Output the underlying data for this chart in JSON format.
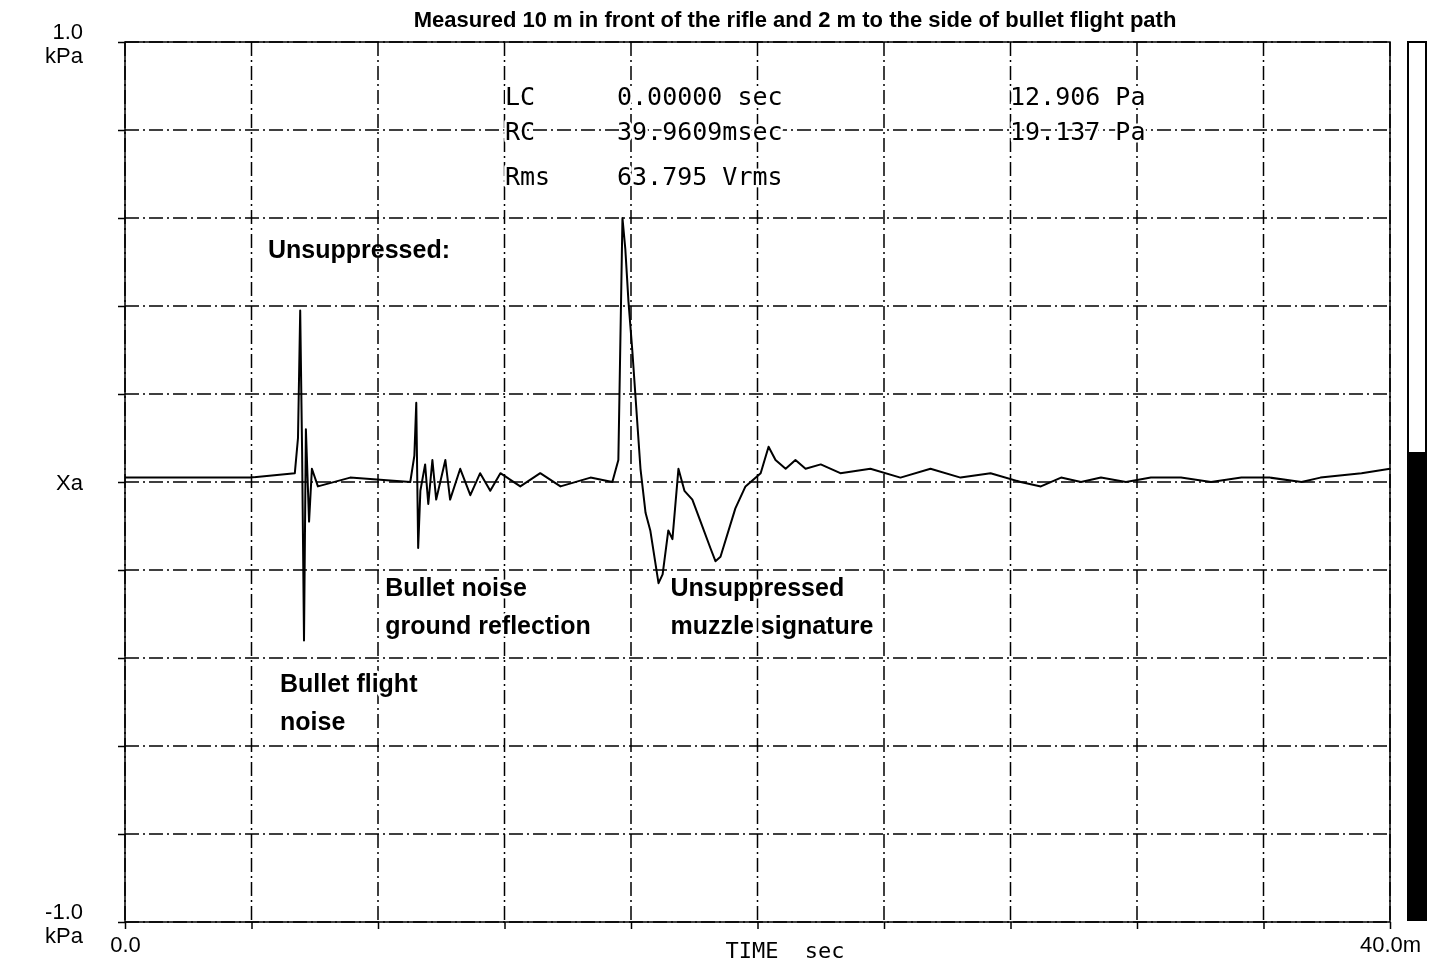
{
  "chart_data": {
    "type": "line",
    "title": "Measured 10 m in front of the rifle and 2 m to the side of bullet flight path",
    "xlabel": "TIME  sec",
    "xlim": [
      0,
      40
    ],
    "ylim": [
      -1,
      1
    ],
    "xticks": [
      {
        "value": 0,
        "label": "0.0"
      },
      {
        "value": 4,
        "label": null
      },
      {
        "value": 8,
        "label": null
      },
      {
        "value": 12,
        "label": null
      },
      {
        "value": 16,
        "label": null
      },
      {
        "value": 20,
        "label": null
      },
      {
        "value": 24,
        "label": null
      },
      {
        "value": 28,
        "label": null
      },
      {
        "value": 32,
        "label": null
      },
      {
        "value": 36,
        "label": null
      },
      {
        "value": 40,
        "label": "40.0m"
      }
    ],
    "yticks": [
      {
        "value": -1,
        "label": "-1.0\nkPa"
      },
      {
        "value": -0.8,
        "label": null
      },
      {
        "value": -0.6,
        "label": null
      },
      {
        "value": -0.4,
        "label": null
      },
      {
        "value": -0.2,
        "label": null
      },
      {
        "value": 0,
        "label": "Xa"
      },
      {
        "value": 0.2,
        "label": null
      },
      {
        "value": 0.4,
        "label": null
      },
      {
        "value": 0.6,
        "label": null
      },
      {
        "value": 0.8,
        "label": null
      },
      {
        "value": 1,
        "label": "1.0\nkPa"
      }
    ],
    "grid": true,
    "line_style": "solid",
    "marker": "none",
    "annotations": [
      "LC\t0.00000 sec\t12.906 Pa",
      "RC\t39.9609msec\t19.137 Pa",
      "Rms\t63.795 Vrms",
      "Unsuppressed:",
      {
        "text": "Bullet flight\nnoise",
        "x": 5.66,
        "y": -0.36
      },
      {
        "text": "Bullet noise\nground reflection",
        "x": 9.27,
        "y": -0.15
      },
      {
        "text": "Unsuppressed\nmuzzle signature",
        "x": 16.87,
        "y": -0.23
      }
    ],
    "series": [
      {
        "color": "#000000",
        "x": [
          0,
          3.95,
          5.37,
          5.47,
          5.54,
          5.6,
          5.66,
          5.72,
          5.82,
          5.91,
          6.1,
          7.12,
          9.02,
          9.15,
          9.21,
          9.27,
          9.34,
          9.49,
          9.59,
          9.72,
          9.84,
          10.13,
          10.28,
          10.6,
          10.92,
          11.23,
          11.55,
          11.87,
          12.5,
          13.13,
          13.77,
          14.72,
          15.41,
          15.6,
          15.73,
          15.82,
          15.92,
          16.04,
          16.3,
          16.46,
          16.61,
          16.87,
          17,
          17.18,
          17.31,
          17.5,
          17.69,
          17.94,
          18.2,
          18.51,
          18.67,
          18.83,
          19.3,
          19.62,
          20.1,
          20.35,
          20.57,
          20.89,
          21.2,
          21.52,
          22,
          22.62,
          23.57,
          24.52,
          25.47,
          26.42,
          27.37,
          28.32,
          28.96,
          29.6,
          30.23,
          30.86,
          31.65,
          32.44,
          33.39,
          34.34,
          35.3,
          36.2,
          37.2,
          37.8,
          39.1,
          40
        ],
        "values": [
          0.01,
          0.01,
          0.02,
          0.1,
          0.39,
          0.07,
          -0.36,
          0.12,
          -0.09,
          0.03,
          -0.01,
          0.01,
          0,
          0.06,
          0.18,
          -0.15,
          -0.02,
          0.04,
          -0.05,
          0.05,
          -0.04,
          0.05,
          -0.04,
          0.03,
          -0.03,
          0.02,
          -0.02,
          0.02,
          -0.01,
          0.02,
          -0.01,
          0.01,
          0,
          0.05,
          0.6,
          0.53,
          0.41,
          0.3,
          0.03,
          -0.07,
          -0.11,
          -0.23,
          -0.21,
          -0.11,
          -0.13,
          0.03,
          -0.02,
          -0.04,
          -0.09,
          -0.15,
          -0.18,
          -0.17,
          -0.06,
          -0.01,
          0.02,
          0.08,
          0.05,
          0.03,
          0.05,
          0.03,
          0.04,
          0.02,
          0.03,
          0.01,
          0.03,
          0.01,
          0.02,
          0,
          -0.01,
          0.01,
          0,
          0.01,
          0,
          0.01,
          0.01,
          0,
          0.01,
          0.01,
          0,
          0.01,
          0.02,
          0.03
        ]
      }
    ]
  }
}
